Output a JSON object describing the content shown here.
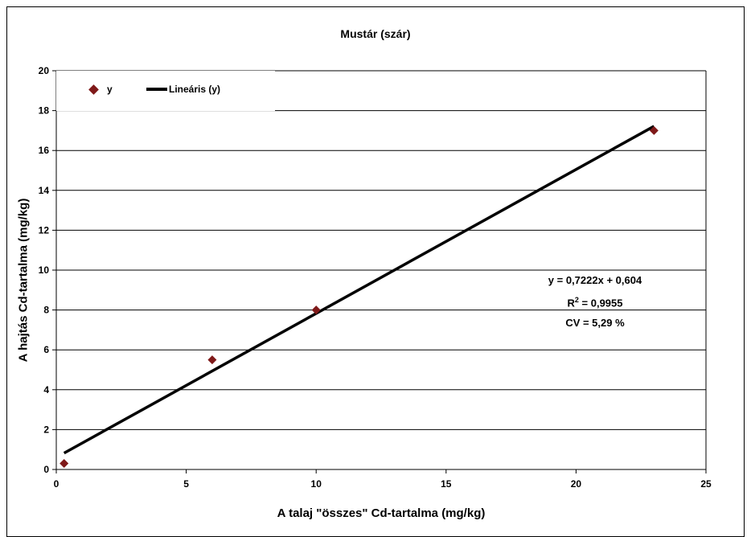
{
  "chart_data": {
    "type": "scatter",
    "title": "Mustár (szár)",
    "xlabel": "A talaj \"összes\" Cd-tartalma (mg/kg)",
    "ylabel": "A hajtás Cd-tartalma (mg/kg)",
    "xlim": [
      0,
      25
    ],
    "ylim": [
      0,
      20
    ],
    "xticks": [
      0,
      5,
      10,
      15,
      20,
      25
    ],
    "yticks": [
      0,
      2,
      4,
      6,
      8,
      10,
      12,
      14,
      16,
      18,
      20
    ],
    "grid": "horizontal",
    "legend_position": "top-left",
    "series": [
      {
        "name": "y",
        "marker": "diamond",
        "color": "#7f1919",
        "x": [
          0.3,
          6,
          10,
          23
        ],
        "y": [
          0.3,
          5.5,
          8.0,
          17.0
        ]
      },
      {
        "name": "Lineáris (y)",
        "kind": "trendline",
        "color": "#000000",
        "slope": 0.7222,
        "intercept": 0.604,
        "x_range": [
          0.3,
          23
        ]
      }
    ],
    "annotations": {
      "equation": "y = 0,7222x + 0,604",
      "r2_prefix": "R",
      "r2_sup": "2",
      "r2_value": " = 0,9955",
      "cv": "CV = 5,29 %"
    }
  }
}
